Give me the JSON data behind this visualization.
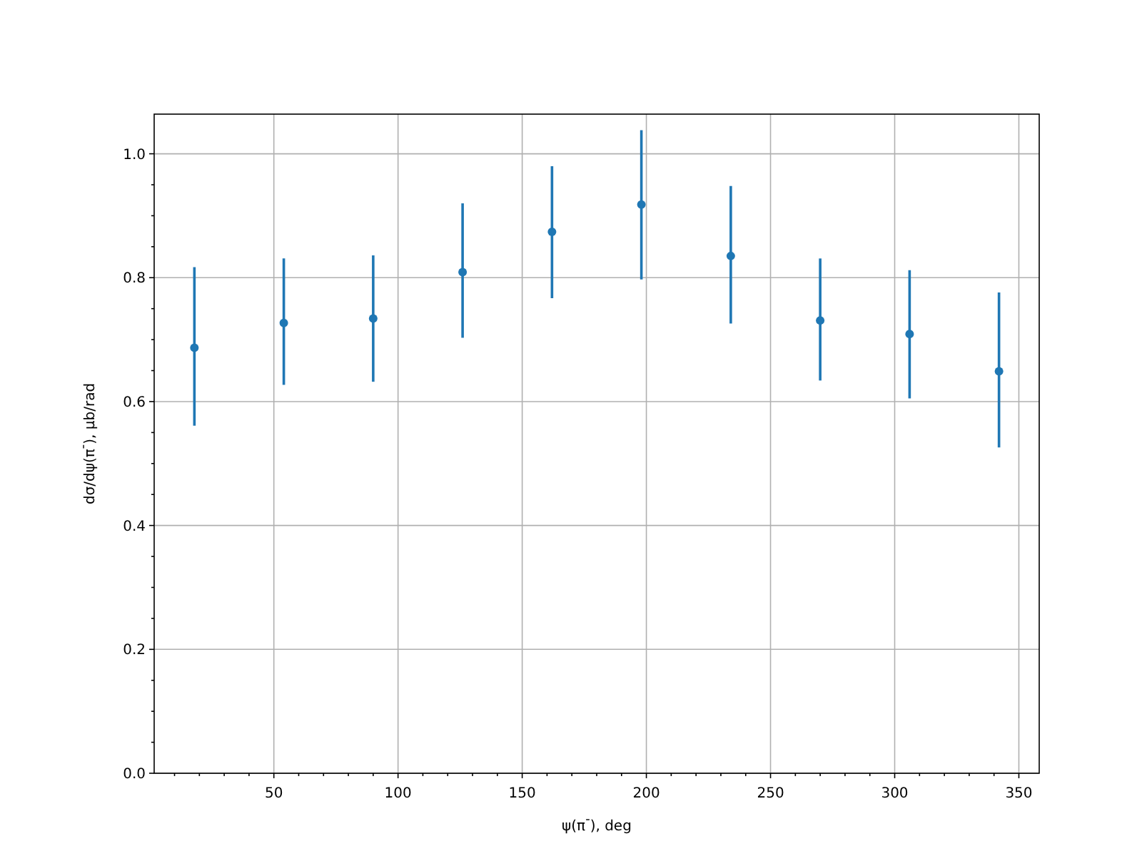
{
  "chart_data": {
    "type": "scatter",
    "xlabel": "ψ(π$^{-}$), deg",
    "ylabel": "dσ/dψ(π$^{-}$), μb/rad",
    "x": [
      18,
      54,
      90,
      126,
      162,
      198,
      234,
      270,
      306,
      342
    ],
    "series": [
      {
        "color": "#1f77b4",
        "values": [
          0.687,
          0.727,
          0.734,
          0.809,
          0.874,
          0.918,
          0.835,
          0.731,
          0.709,
          0.649
        ],
        "errors": [
          [
            0.561,
            0.817
          ],
          [
            0.627,
            0.831
          ],
          [
            0.632,
            0.836
          ],
          [
            0.703,
            0.92
          ],
          [
            0.767,
            0.98
          ],
          [
            0.797,
            1.038
          ],
          [
            0.726,
            0.948
          ],
          [
            0.634,
            0.831
          ],
          [
            0.605,
            0.812
          ],
          [
            0.526,
            0.776
          ]
        ]
      }
    ],
    "xlim": [
      1.8,
      358.2
    ],
    "xticks": [
      {
        "value": 10,
        "label": null
      },
      {
        "value": 20,
        "label": null
      },
      {
        "value": 30,
        "label": null
      },
      {
        "value": 40,
        "label": null
      },
      50,
      {
        "value": 60,
        "label": null
      },
      {
        "value": 70,
        "label": null
      },
      {
        "value": 80,
        "label": null
      },
      {
        "value": 90,
        "label": null
      },
      100,
      {
        "value": 110,
        "label": null
      },
      {
        "value": 120,
        "label": null
      },
      {
        "value": 130,
        "label": null
      },
      {
        "value": 140,
        "label": null
      },
      150,
      {
        "value": 160,
        "label": null
      },
      {
        "value": 170,
        "label": null
      },
      {
        "value": 180,
        "label": null
      },
      {
        "value": 190,
        "label": null
      },
      200,
      {
        "value": 210,
        "label": null
      },
      {
        "value": 220,
        "label": null
      },
      {
        "value": 230,
        "label": null
      },
      {
        "value": 240,
        "label": null
      },
      250,
      {
        "value": 260,
        "label": null
      },
      {
        "value": 270,
        "label": null
      },
      {
        "value": 280,
        "label": null
      },
      {
        "value": 290,
        "label": null
      },
      300,
      {
        "value": 310,
        "label": null
      },
      {
        "value": 320,
        "label": null
      },
      {
        "value": 330,
        "label": null
      },
      {
        "value": 340,
        "label": null
      },
      350
    ],
    "ylim": [
      0,
      1.064
    ],
    "yticks": [
      {
        "value": 0,
        "label": "0.0"
      },
      {
        "value": 0.05,
        "label": null
      },
      {
        "value": 0.1,
        "label": null
      },
      {
        "value": 0.15,
        "label": null
      },
      0.2,
      {
        "value": 0.25,
        "label": null
      },
      {
        "value": 0.3,
        "label": null
      },
      {
        "value": 0.35,
        "label": null
      },
      0.4,
      {
        "value": 0.45,
        "label": null
      },
      {
        "value": 0.5,
        "label": null
      },
      {
        "value": 0.55,
        "label": null
      },
      0.6,
      {
        "value": 0.65,
        "label": null
      },
      {
        "value": 0.7,
        "label": null
      },
      {
        "value": 0.75,
        "label": null
      },
      0.8,
      {
        "value": 0.85,
        "label": null
      },
      {
        "value": 0.9,
        "label": null
      },
      {
        "value": 0.95,
        "label": null
      },
      {
        "value": 1.0,
        "label": "1.0"
      }
    ],
    "grid": true,
    "marker": "circle"
  }
}
